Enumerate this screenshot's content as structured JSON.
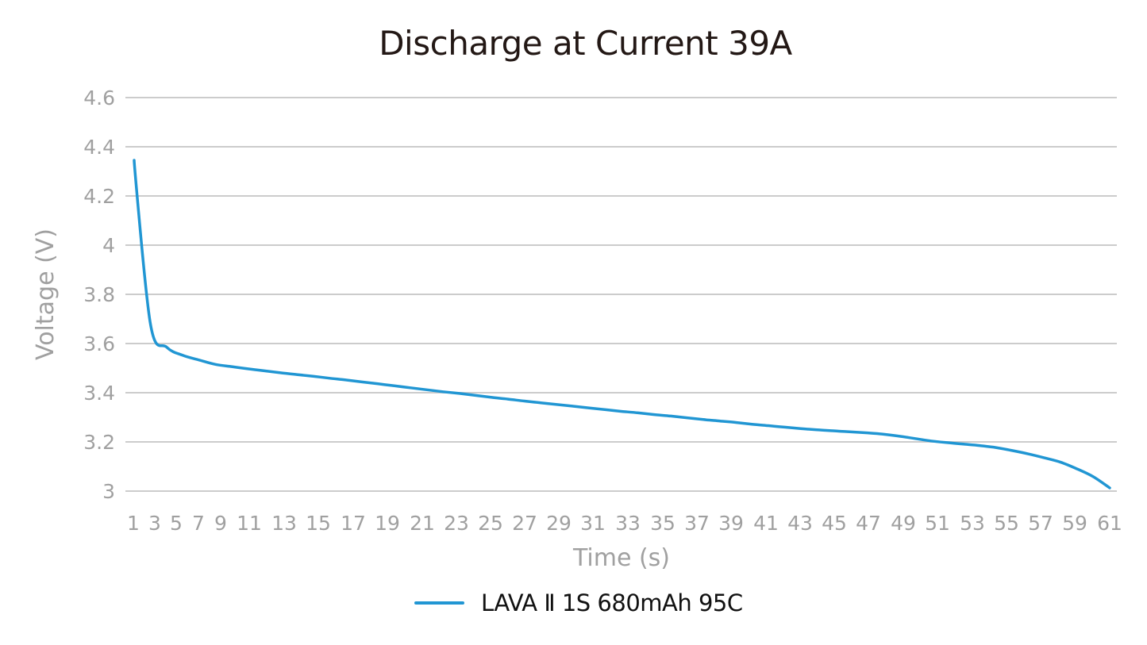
{
  "chart_data": {
    "type": "line",
    "title": "Discharge at Current 39A",
    "xlabel": "Time (s)",
    "ylabel": "Voltage (V)",
    "ylim": [
      3,
      4.6
    ],
    "yticks": [
      "3",
      "3.2",
      "3.4",
      "3.6",
      "3.8",
      "4",
      "4.2",
      "4.4",
      "4.6"
    ],
    "xticks": [
      "1",
      "3",
      "5",
      "7",
      "9",
      "11",
      "13",
      "15",
      "17",
      "19",
      "21",
      "23",
      "25",
      "27",
      "29",
      "31",
      "33",
      "35",
      "37",
      "39",
      "41",
      "43",
      "45",
      "47",
      "49",
      "51",
      "53",
      "55",
      "57",
      "59",
      "61"
    ],
    "grid": true,
    "legend_position": "bottom",
    "x": [
      1,
      2,
      3,
      4,
      5,
      6,
      7,
      8,
      9,
      10,
      11,
      12,
      13,
      14,
      15,
      16,
      17,
      18,
      19,
      20,
      21,
      22,
      23,
      24,
      25,
      26,
      27,
      28,
      29,
      30,
      31,
      32,
      33,
      34,
      35,
      36,
      37,
      38,
      39,
      40,
      41,
      42,
      43,
      44,
      45,
      46,
      47,
      48,
      49,
      50,
      51,
      52,
      53,
      54,
      55,
      56,
      57,
      58,
      59,
      60,
      61
    ],
    "series": [
      {
        "name": "LAVA Ⅱ 1S 680mAh 95C",
        "color": "#2196D3",
        "values": [
          4.345,
          3.68,
          3.585,
          3.552,
          3.533,
          3.515,
          3.506,
          3.497,
          3.489,
          3.481,
          3.474,
          3.467,
          3.459,
          3.452,
          3.444,
          3.436,
          3.428,
          3.42,
          3.412,
          3.404,
          3.397,
          3.389,
          3.381,
          3.374,
          3.366,
          3.359,
          3.352,
          3.345,
          3.338,
          3.331,
          3.324,
          3.318,
          3.311,
          3.305,
          3.298,
          3.291,
          3.285,
          3.279,
          3.272,
          3.266,
          3.26,
          3.254,
          3.249,
          3.245,
          3.241,
          3.237,
          3.232,
          3.224,
          3.214,
          3.204,
          3.197,
          3.191,
          3.185,
          3.177,
          3.165,
          3.151,
          3.135,
          3.117,
          3.09,
          3.058,
          3.013
        ]
      }
    ]
  },
  "colors": {
    "line": "#2196D3",
    "grid": "#CCCCCC",
    "axis_text": "#A0A0A0",
    "title_text": "#231815"
  }
}
